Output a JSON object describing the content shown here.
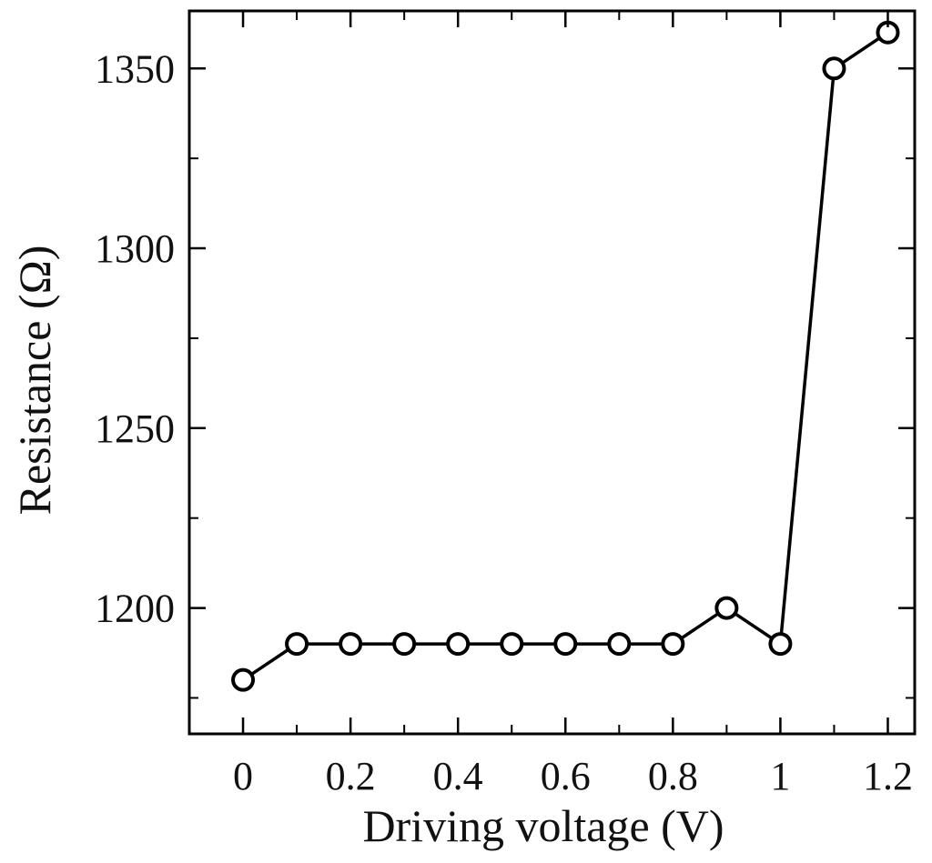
{
  "chart_data": {
    "type": "line",
    "xlabel": "Driving voltage (V)",
    "ylabel": "Resistance (Ω)",
    "xlim": [
      -0.1,
      1.25
    ],
    "ylim": [
      1165,
      1366
    ],
    "x_ticks": [
      0,
      0.2,
      0.4,
      0.6,
      0.8,
      1,
      1.2
    ],
    "x_tick_labels": [
      "0",
      "0.2",
      "0.4",
      "0.6",
      "0.8",
      "1",
      "1.2"
    ],
    "y_ticks": [
      1200,
      1250,
      1300,
      1350
    ],
    "y_tick_labels": [
      "1200",
      "1250",
      "1300",
      "1350"
    ],
    "grid": false,
    "marker": "open-circle",
    "line_color": "#000000",
    "series": [
      {
        "x": [
          0,
          0.1,
          0.2,
          0.3,
          0.4,
          0.5,
          0.6,
          0.7,
          0.8,
          0.9,
          1.0,
          1.1,
          1.2
        ],
        "y": [
          1180,
          1190,
          1190,
          1190,
          1190,
          1190,
          1190,
          1190,
          1190,
          1200,
          1190,
          1350,
          1360
        ]
      }
    ]
  }
}
